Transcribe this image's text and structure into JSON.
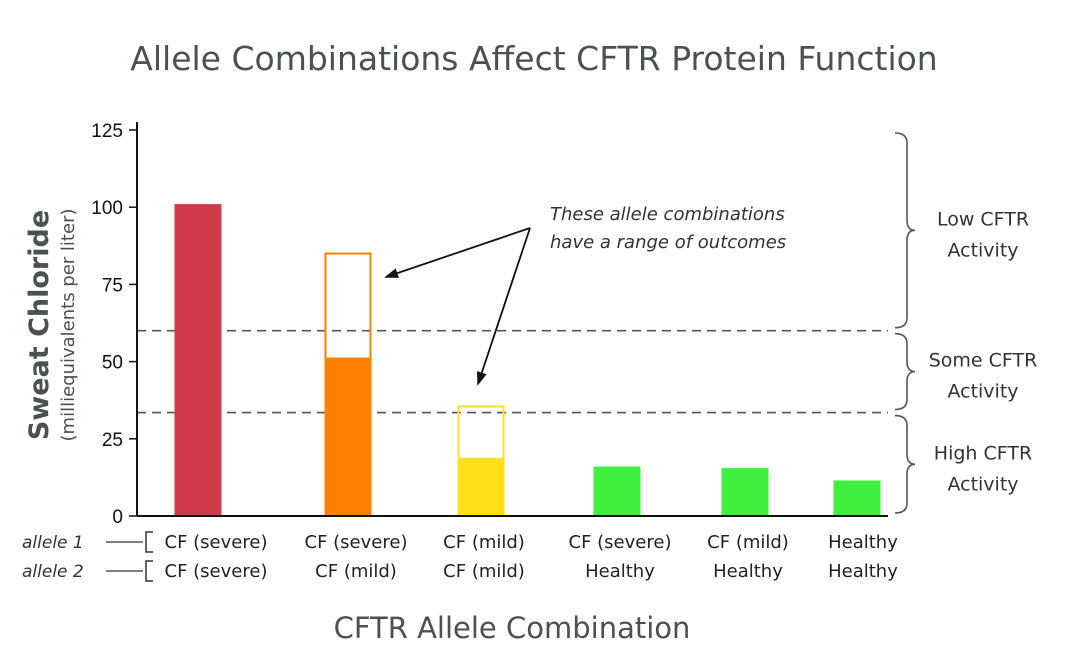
{
  "chart_data": {
    "type": "bar",
    "title": "Allele Combinations Affect CFTR Protein Function",
    "xlabel": "CFTR Allele Combination",
    "ylabel": "Sweat Chloride",
    "ylabel_sub": "(milliequivalents per liter)",
    "ylim": [
      0,
      125
    ],
    "yticks": [
      0,
      25,
      50,
      75,
      100,
      125
    ],
    "allele_labels": [
      "allele 1",
      "allele 2"
    ],
    "categories": [
      {
        "allele1": "CF (severe)",
        "allele2": "CF (severe)"
      },
      {
        "allele1": "CF (severe)",
        "allele2": "CF (mild)"
      },
      {
        "allele1": "CF (mild)",
        "allele2": "CF (mild)"
      },
      {
        "allele1": "CF (severe)",
        "allele2": "Healthy"
      },
      {
        "allele1": "CF (mild)",
        "allele2": "Healthy"
      },
      {
        "allele1": "Healthy",
        "allele2": "Healthy"
      }
    ],
    "bars": [
      {
        "value": 101,
        "range_max": null,
        "color": "#d0394a"
      },
      {
        "value": 51,
        "range_max": 85,
        "color": "#ff8000"
      },
      {
        "value": 18.5,
        "range_max": 35.5,
        "color": "#ffe01a"
      },
      {
        "value": 16,
        "range_max": null,
        "color": "#3ef03e"
      },
      {
        "value": 15.5,
        "range_max": null,
        "color": "#3ef03e"
      },
      {
        "value": 11.5,
        "range_max": null,
        "color": "#3ef03e"
      }
    ],
    "thresholds": [
      60,
      33.5
    ],
    "regions": [
      {
        "label_line1": "Low CFTR",
        "label_line2": "Activity",
        "from": 60,
        "to": 125
      },
      {
        "label_line1": "Some CFTR",
        "label_line2": "Activity",
        "from": 33.5,
        "to": 60
      },
      {
        "label_line1": "High CFTR",
        "label_line2": "Activity",
        "from": 0,
        "to": 33.5
      }
    ],
    "annotation": {
      "line1": "These allele combinations",
      "line2": "have a range of outcomes"
    },
    "grid": false,
    "legend": "none"
  }
}
